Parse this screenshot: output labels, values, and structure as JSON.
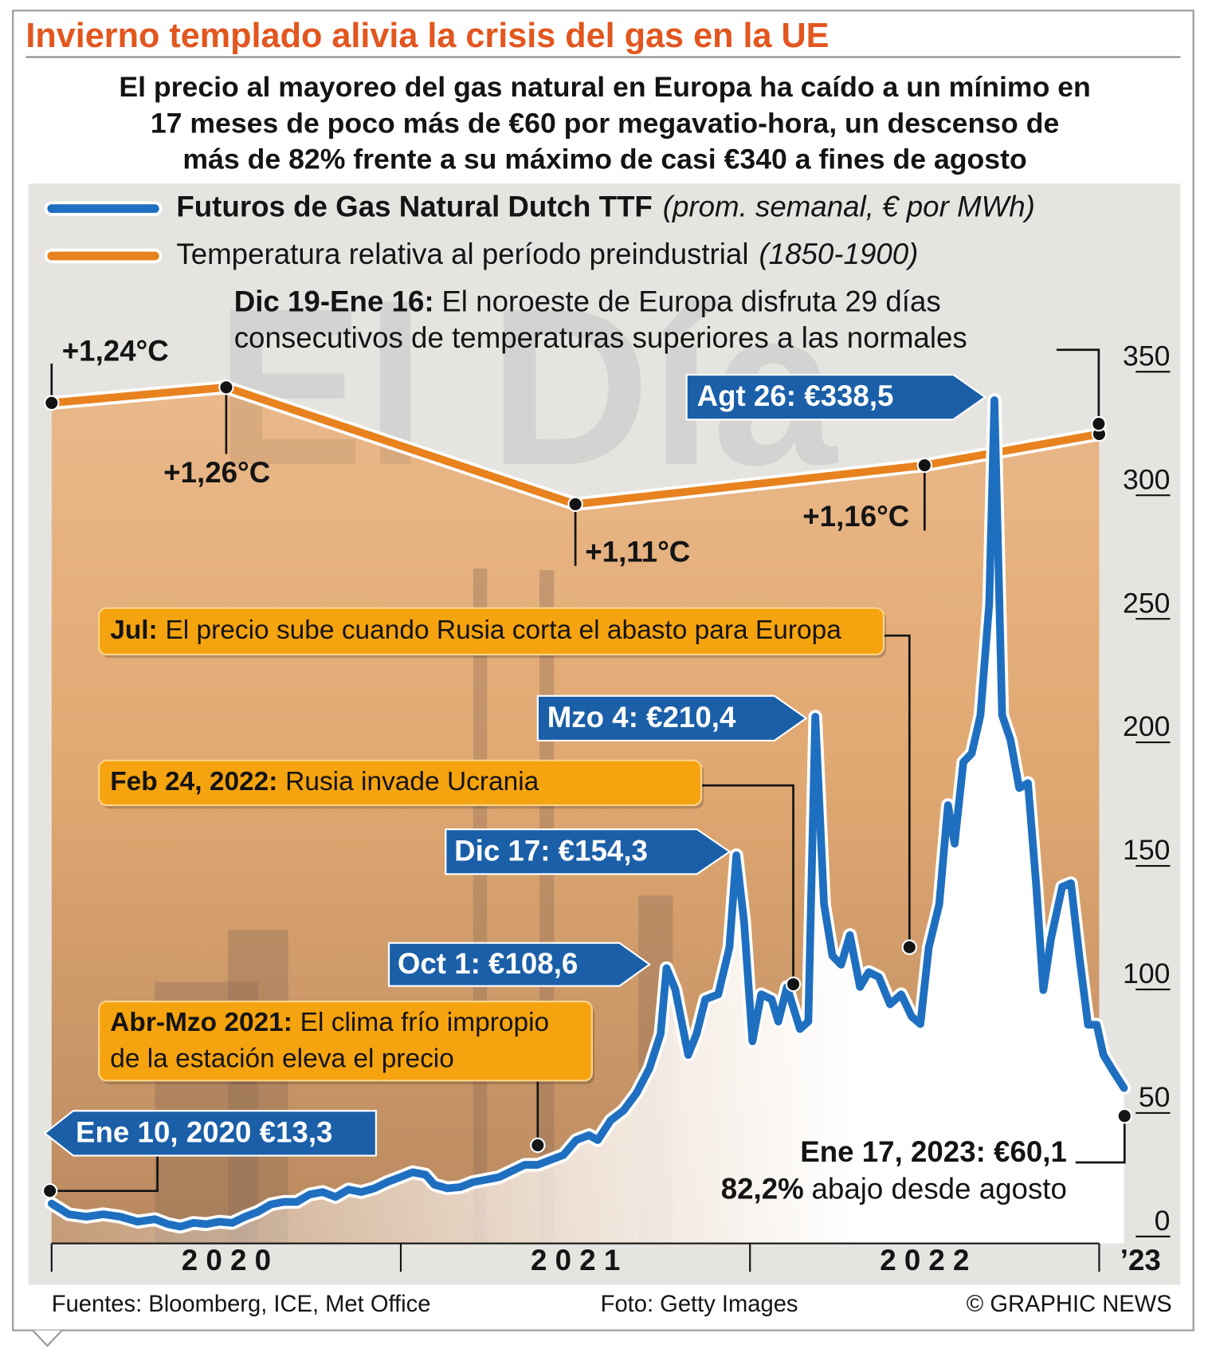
{
  "chart_data": {
    "type": "line",
    "title": "Invierno templado alivia la crisis del gas en la UE",
    "subtitle": [
      "El precio al mayoreo del gas natural en Europa ha caído a un mínimo en",
      "17 meses de poco más de €60 por megavatio-hora, un descenso de",
      "más de 82% frente a su máximo de casi €340 a fines de agosto"
    ],
    "watermark": "El Día",
    "xlim": [
      2020,
      2023.08
    ],
    "xticks": [
      {
        "value": 2020,
        "label": "2 0 2 0"
      },
      {
        "value": 2021,
        "label": "2 0 2 1"
      },
      {
        "value": 2022,
        "label": "2 0 2 2"
      },
      {
        "value": 2023,
        "label": "’23"
      }
    ],
    "ylim": [
      0,
      350
    ],
    "yticks": [
      0,
      50,
      100,
      150,
      200,
      250,
      300,
      350
    ],
    "y2lim": [
      0.17,
      1.28
    ],
    "series": [
      {
        "name": "Futuros de Gas Natural Dutch TTF",
        "note": "(prom. semanal, € por MWh)",
        "color": "#1f6fc0",
        "x": [
          2020.0,
          2020.049,
          2020.099,
          2020.148,
          2020.197,
          2020.246,
          2020.296,
          2020.333,
          2020.369,
          2020.406,
          2020.443,
          2020.48,
          2020.517,
          2020.554,
          2020.591,
          2020.628,
          2020.665,
          2020.702,
          2020.739,
          2020.776,
          2020.813,
          2020.85,
          2020.887,
          2020.924,
          2020.961,
          2020.998,
          2021.034,
          2021.071,
          2021.096,
          2021.133,
          2021.17,
          2021.207,
          2021.244,
          2021.281,
          2021.318,
          2021.355,
          2021.392,
          2021.429,
          2021.466,
          2021.502,
          2021.539,
          2021.564,
          2021.601,
          2021.638,
          2021.675,
          2021.712,
          2021.744,
          2021.761,
          2021.786,
          2021.823,
          2021.847,
          2021.872,
          2021.909,
          2021.941,
          2021.961,
          2021.983,
          2022.007,
          2022.032,
          2022.062,
          2022.081,
          2022.106,
          2022.143,
          2022.167,
          2022.187,
          2022.212,
          2022.236,
          2022.261,
          2022.286,
          2022.315,
          2022.34,
          2022.369,
          2022.401,
          2022.433,
          2022.463,
          2022.488,
          2022.512,
          2022.542,
          2022.567,
          2022.586,
          2022.611,
          2022.635,
          2022.66,
          2022.685,
          2022.7,
          2022.722,
          2022.746,
          2022.771,
          2022.796,
          2022.82,
          2022.84,
          2022.862,
          2022.894,
          2022.919,
          2022.943,
          2022.968,
          2022.993,
          2023.012,
          2023.042,
          2023.071
        ],
        "values": [
          13.3,
          9,
          8,
          9,
          8,
          6,
          7,
          5,
          4,
          5.5,
          5,
          6,
          5.5,
          8,
          10,
          13,
          14,
          14,
          17,
          18,
          16,
          19,
          18,
          19.5,
          22,
          24,
          26,
          25,
          21,
          19.5,
          20,
          22,
          23,
          24,
          26.5,
          29,
          29,
          31,
          33,
          39,
          41,
          39,
          47,
          51,
          58,
          68,
          82,
          108.6,
          100,
          73.5,
          82,
          96,
          98,
          117,
          154.3,
          127.5,
          79,
          98,
          96,
          87,
          101,
          84,
          87,
          210.4,
          134.5,
          113.6,
          110,
          122,
          101,
          107,
          105,
          94,
          98,
          89,
          86,
          117,
          134.5,
          174.6,
          159,
          192,
          195.5,
          211,
          256,
          338.5,
          211,
          201,
          181.5,
          183.5,
          141.5,
          99.7,
          120.5,
          141.5,
          143,
          113.6,
          85.7,
          85.7,
          73.5,
          66.5,
          60.1
        ]
      },
      {
        "name": "Temperatura relativa al período preindustrial",
        "note": "(1850-1900)",
        "color": "#e8821e",
        "axis": "y2",
        "x": [
          2020.0,
          2020.5,
          2021.5,
          2022.5,
          2023.0
        ],
        "values": [
          1.24,
          1.26,
          1.11,
          1.16,
          1.2
        ],
        "value_labels": [
          "+1,24°C",
          "+1,26°C",
          "+1,11°C",
          "+1,16°C",
          null
        ]
      }
    ],
    "annotations": [
      {
        "lines": [
          [
            {
              "text": "Dic 19-Ene 16:",
              "bold": true
            },
            {
              "text": "El noroeste de Europa disfruta 29 días"
            }
          ],
          [
            {
              "text": "consecutivos de temperaturas superiores a las normales"
            }
          ]
        ]
      },
      {
        "lines": [
          [
            {
              "text": "Agt 26: €338,5",
              "bold": true
            }
          ]
        ]
      },
      {
        "lines": [
          [
            {
              "text": "Jul:",
              "bold": true
            },
            {
              "text": "El precio sube cuando Rusia corta el abasto para Europa"
            }
          ]
        ]
      },
      {
        "lines": [
          [
            {
              "text": "Mzo 4: €210,4",
              "bold": true
            }
          ]
        ]
      },
      {
        "lines": [
          [
            {
              "text": "Feb 24, 2022:",
              "bold": true
            },
            {
              "text": "Rusia invade Ucrania"
            }
          ]
        ]
      },
      {
        "lines": [
          [
            {
              "text": "Dic 17: €154,3",
              "bold": true
            }
          ]
        ]
      },
      {
        "lines": [
          [
            {
              "text": "Oct 1: €108,6",
              "bold": true
            }
          ]
        ]
      },
      {
        "lines": [
          [
            {
              "text": "Abr-Mzo 2021:",
              "bold": true
            },
            {
              "text": "El clima frío impropio"
            }
          ],
          [
            {
              "text": "de la estación eleva el precio"
            }
          ]
        ]
      },
      {
        "lines": [
          [
            {
              "text": "Ene 10, 2020 €13,3",
              "bold": true
            }
          ]
        ]
      },
      {
        "lines": [
          [
            {
              "text": "Ene 17, 2023: €60,1",
              "bold": true
            }
          ],
          [
            {
              "text": "82,2%",
              "bold": true
            },
            {
              "text": "abajo desde agosto"
            }
          ]
        ]
      }
    ]
  },
  "footer": {
    "source": "Fuentes: Bloomberg, ICE, Met Office",
    "photo": "Foto: Getty Images",
    "credit": "© GRAPHIC NEWS"
  }
}
